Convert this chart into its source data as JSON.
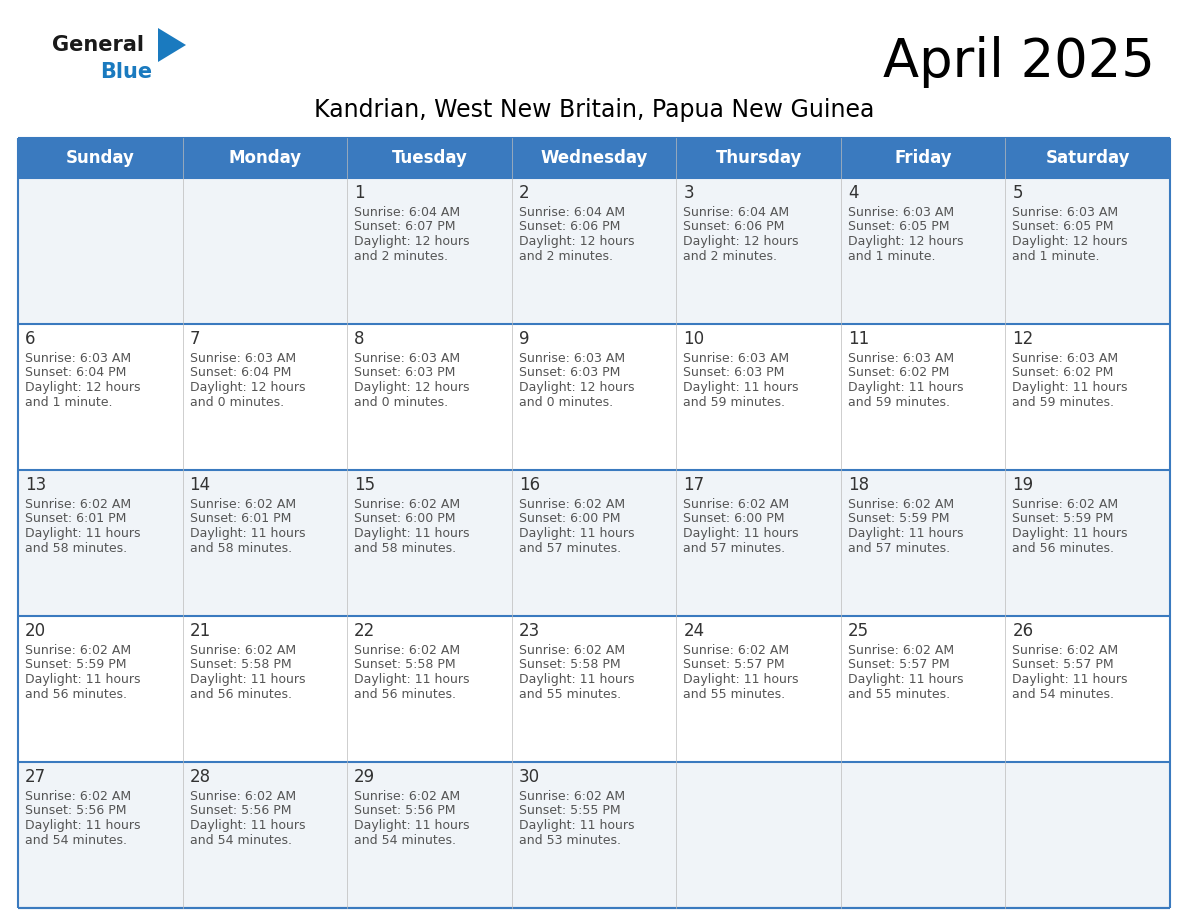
{
  "title": "April 2025",
  "subtitle": "Kandrian, West New Britain, Papua New Guinea",
  "days_of_week": [
    "Sunday",
    "Monday",
    "Tuesday",
    "Wednesday",
    "Thursday",
    "Friday",
    "Saturday"
  ],
  "header_bg": "#3a7abf",
  "header_text": "#ffffff",
  "cell_bg_odd": "#f0f4f8",
  "cell_bg_even": "#ffffff",
  "grid_line_color": "#3a7abf",
  "text_color": "#555555",
  "day_num_color": "#333333",
  "logo_general_color": "#1a1a1a",
  "logo_blue_color": "#1a7abf",
  "calendar_data": [
    [
      {
        "day": "",
        "sunrise": "",
        "sunset": "",
        "daylight": ""
      },
      {
        "day": "",
        "sunrise": "",
        "sunset": "",
        "daylight": ""
      },
      {
        "day": "1",
        "sunrise": "6:04 AM",
        "sunset": "6:07 PM",
        "daylight": "12 hours\nand 2 minutes."
      },
      {
        "day": "2",
        "sunrise": "6:04 AM",
        "sunset": "6:06 PM",
        "daylight": "12 hours\nand 2 minutes."
      },
      {
        "day": "3",
        "sunrise": "6:04 AM",
        "sunset": "6:06 PM",
        "daylight": "12 hours\nand 2 minutes."
      },
      {
        "day": "4",
        "sunrise": "6:03 AM",
        "sunset": "6:05 PM",
        "daylight": "12 hours\nand 1 minute."
      },
      {
        "day": "5",
        "sunrise": "6:03 AM",
        "sunset": "6:05 PM",
        "daylight": "12 hours\nand 1 minute."
      }
    ],
    [
      {
        "day": "6",
        "sunrise": "6:03 AM",
        "sunset": "6:04 PM",
        "daylight": "12 hours\nand 1 minute."
      },
      {
        "day": "7",
        "sunrise": "6:03 AM",
        "sunset": "6:04 PM",
        "daylight": "12 hours\nand 0 minutes."
      },
      {
        "day": "8",
        "sunrise": "6:03 AM",
        "sunset": "6:03 PM",
        "daylight": "12 hours\nand 0 minutes."
      },
      {
        "day": "9",
        "sunrise": "6:03 AM",
        "sunset": "6:03 PM",
        "daylight": "12 hours\nand 0 minutes."
      },
      {
        "day": "10",
        "sunrise": "6:03 AM",
        "sunset": "6:03 PM",
        "daylight": "11 hours\nand 59 minutes."
      },
      {
        "day": "11",
        "sunrise": "6:03 AM",
        "sunset": "6:02 PM",
        "daylight": "11 hours\nand 59 minutes."
      },
      {
        "day": "12",
        "sunrise": "6:03 AM",
        "sunset": "6:02 PM",
        "daylight": "11 hours\nand 59 minutes."
      }
    ],
    [
      {
        "day": "13",
        "sunrise": "6:02 AM",
        "sunset": "6:01 PM",
        "daylight": "11 hours\nand 58 minutes."
      },
      {
        "day": "14",
        "sunrise": "6:02 AM",
        "sunset": "6:01 PM",
        "daylight": "11 hours\nand 58 minutes."
      },
      {
        "day": "15",
        "sunrise": "6:02 AM",
        "sunset": "6:00 PM",
        "daylight": "11 hours\nand 58 minutes."
      },
      {
        "day": "16",
        "sunrise": "6:02 AM",
        "sunset": "6:00 PM",
        "daylight": "11 hours\nand 57 minutes."
      },
      {
        "day": "17",
        "sunrise": "6:02 AM",
        "sunset": "6:00 PM",
        "daylight": "11 hours\nand 57 minutes."
      },
      {
        "day": "18",
        "sunrise": "6:02 AM",
        "sunset": "5:59 PM",
        "daylight": "11 hours\nand 57 minutes."
      },
      {
        "day": "19",
        "sunrise": "6:02 AM",
        "sunset": "5:59 PM",
        "daylight": "11 hours\nand 56 minutes."
      }
    ],
    [
      {
        "day": "20",
        "sunrise": "6:02 AM",
        "sunset": "5:59 PM",
        "daylight": "11 hours\nand 56 minutes."
      },
      {
        "day": "21",
        "sunrise": "6:02 AM",
        "sunset": "5:58 PM",
        "daylight": "11 hours\nand 56 minutes."
      },
      {
        "day": "22",
        "sunrise": "6:02 AM",
        "sunset": "5:58 PM",
        "daylight": "11 hours\nand 56 minutes."
      },
      {
        "day": "23",
        "sunrise": "6:02 AM",
        "sunset": "5:58 PM",
        "daylight": "11 hours\nand 55 minutes."
      },
      {
        "day": "24",
        "sunrise": "6:02 AM",
        "sunset": "5:57 PM",
        "daylight": "11 hours\nand 55 minutes."
      },
      {
        "day": "25",
        "sunrise": "6:02 AM",
        "sunset": "5:57 PM",
        "daylight": "11 hours\nand 55 minutes."
      },
      {
        "day": "26",
        "sunrise": "6:02 AM",
        "sunset": "5:57 PM",
        "daylight": "11 hours\nand 54 minutes."
      }
    ],
    [
      {
        "day": "27",
        "sunrise": "6:02 AM",
        "sunset": "5:56 PM",
        "daylight": "11 hours\nand 54 minutes."
      },
      {
        "day": "28",
        "sunrise": "6:02 AM",
        "sunset": "5:56 PM",
        "daylight": "11 hours\nand 54 minutes."
      },
      {
        "day": "29",
        "sunrise": "6:02 AM",
        "sunset": "5:56 PM",
        "daylight": "11 hours\nand 54 minutes."
      },
      {
        "day": "30",
        "sunrise": "6:02 AM",
        "sunset": "5:55 PM",
        "daylight": "11 hours\nand 53 minutes."
      },
      {
        "day": "",
        "sunrise": "",
        "sunset": "",
        "daylight": ""
      },
      {
        "day": "",
        "sunrise": "",
        "sunset": "",
        "daylight": ""
      },
      {
        "day": "",
        "sunrise": "",
        "sunset": "",
        "daylight": ""
      }
    ]
  ]
}
